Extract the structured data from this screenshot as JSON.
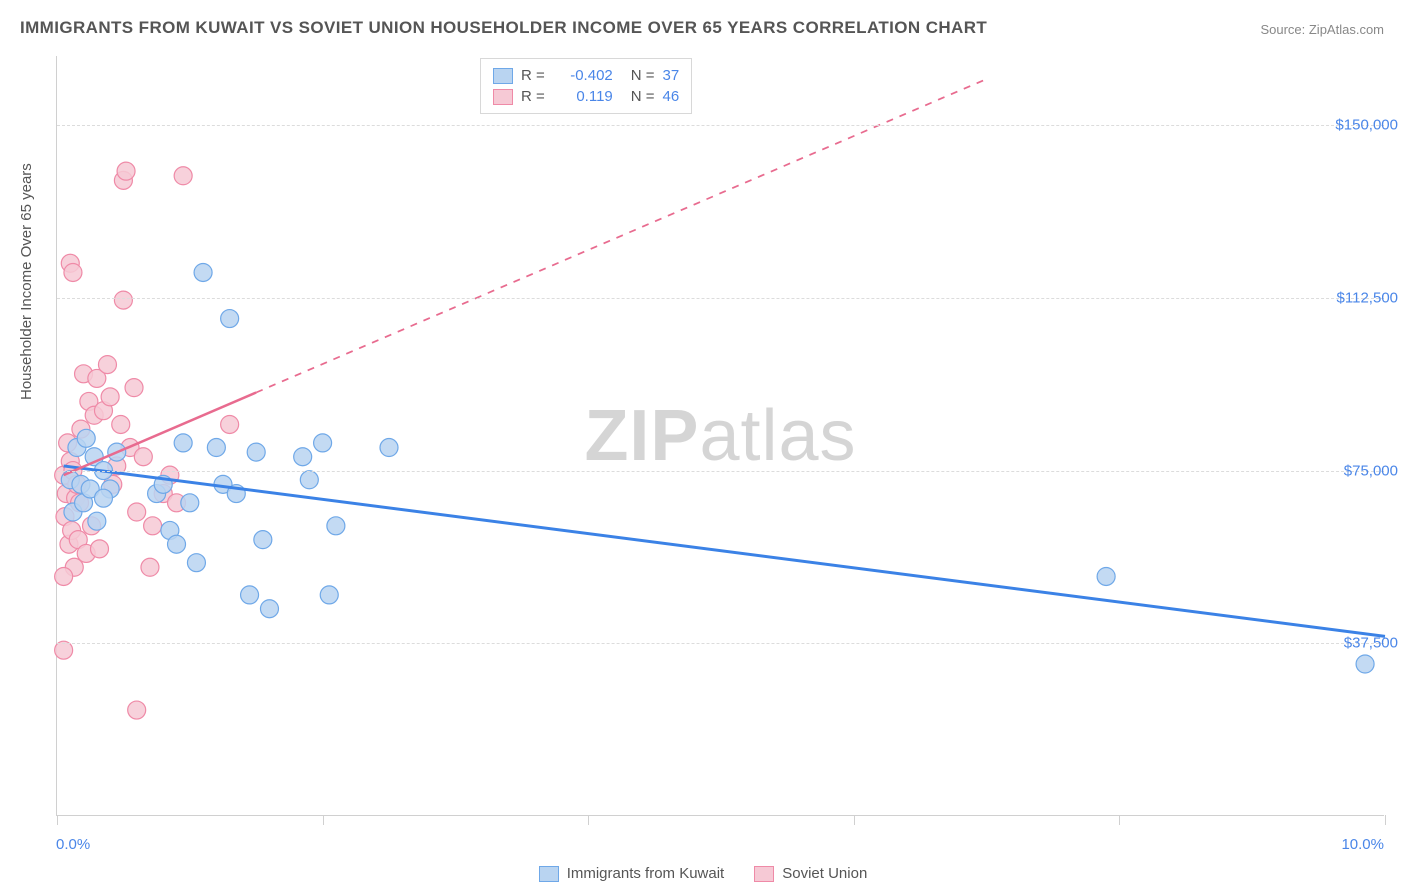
{
  "title": "IMMIGRANTS FROM KUWAIT VS SOVIET UNION HOUSEHOLDER INCOME OVER 65 YEARS CORRELATION CHART",
  "source": "Source: ZipAtlas.com",
  "ylabel": "Householder Income Over 65 years",
  "watermark_bold": "ZIP",
  "watermark_light": "atlas",
  "chart": {
    "type": "scatter",
    "xlim": [
      0,
      10
    ],
    "ylim": [
      0,
      165000
    ],
    "x_tick_label_left": "0.0%",
    "x_tick_label_right": "10.0%",
    "x_tick_positions": [
      0,
      2,
      4,
      6,
      8,
      10
    ],
    "y_ticks": [
      {
        "value": 37500,
        "label": "$37,500"
      },
      {
        "value": 75000,
        "label": "$75,000"
      },
      {
        "value": 112500,
        "label": "$112,500"
      },
      {
        "value": 150000,
        "label": "$150,000"
      }
    ],
    "grid_color": "#dcdcdc",
    "axis_color": "#d0d0d0",
    "background_color": "#ffffff",
    "series": [
      {
        "name": "Immigrants from Kuwait",
        "color_fill": "#b9d4f1",
        "color_stroke": "#6fa8e8",
        "marker_radius": 9,
        "R": "-0.402",
        "N": "37",
        "trend": {
          "x1": 0.05,
          "y1": 76000,
          "x2": 10.0,
          "y2": 39000,
          "solid_end_x": 10.0,
          "color": "#3b82e6",
          "width": 3
        },
        "points": [
          [
            0.1,
            73000
          ],
          [
            0.12,
            66000
          ],
          [
            0.15,
            80000
          ],
          [
            0.18,
            72000
          ],
          [
            0.2,
            68000
          ],
          [
            0.22,
            82000
          ],
          [
            0.25,
            71000
          ],
          [
            0.28,
            78000
          ],
          [
            0.3,
            64000
          ],
          [
            0.35,
            75000
          ],
          [
            0.4,
            71000
          ],
          [
            0.45,
            79000
          ],
          [
            0.75,
            70000
          ],
          [
            0.8,
            72000
          ],
          [
            0.85,
            62000
          ],
          [
            0.9,
            59000
          ],
          [
            0.95,
            81000
          ],
          [
            1.0,
            68000
          ],
          [
            1.05,
            55000
          ],
          [
            1.1,
            118000
          ],
          [
            1.2,
            80000
          ],
          [
            1.25,
            72000
          ],
          [
            1.3,
            108000
          ],
          [
            1.35,
            70000
          ],
          [
            1.45,
            48000
          ],
          [
            1.5,
            79000
          ],
          [
            1.55,
            60000
          ],
          [
            1.6,
            45000
          ],
          [
            1.85,
            78000
          ],
          [
            1.9,
            73000
          ],
          [
            2.0,
            81000
          ],
          [
            2.05,
            48000
          ],
          [
            2.1,
            63000
          ],
          [
            2.5,
            80000
          ],
          [
            7.9,
            52000
          ],
          [
            9.85,
            33000
          ],
          [
            0.35,
            69000
          ]
        ]
      },
      {
        "name": "Soviet Union",
        "color_fill": "#f6c9d5",
        "color_stroke": "#ef8aa7",
        "marker_radius": 9,
        "R": "0.119",
        "N": "46",
        "trend": {
          "x1": 0.05,
          "y1": 74000,
          "x2": 7.0,
          "y2": 160000,
          "solid_end_x": 1.5,
          "color": "#e86b8f",
          "width": 2.5
        },
        "points": [
          [
            0.05,
            74000
          ],
          [
            0.06,
            65000
          ],
          [
            0.07,
            70000
          ],
          [
            0.08,
            81000
          ],
          [
            0.09,
            59000
          ],
          [
            0.1,
            77000
          ],
          [
            0.11,
            62000
          ],
          [
            0.12,
            75000
          ],
          [
            0.13,
            54000
          ],
          [
            0.14,
            69000
          ],
          [
            0.15,
            72000
          ],
          [
            0.16,
            60000
          ],
          [
            0.17,
            68000
          ],
          [
            0.18,
            84000
          ],
          [
            0.2,
            96000
          ],
          [
            0.22,
            57000
          ],
          [
            0.24,
            90000
          ],
          [
            0.26,
            63000
          ],
          [
            0.28,
            87000
          ],
          [
            0.3,
            95000
          ],
          [
            0.32,
            58000
          ],
          [
            0.35,
            88000
          ],
          [
            0.38,
            98000
          ],
          [
            0.4,
            91000
          ],
          [
            0.42,
            72000
          ],
          [
            0.45,
            76000
          ],
          [
            0.48,
            85000
          ],
          [
            0.5,
            112000
          ],
          [
            0.55,
            80000
          ],
          [
            0.58,
            93000
          ],
          [
            0.6,
            66000
          ],
          [
            0.65,
            78000
          ],
          [
            0.05,
            52000
          ],
          [
            0.1,
            120000
          ],
          [
            0.12,
            118000
          ],
          [
            0.7,
            54000
          ],
          [
            0.72,
            63000
          ],
          [
            0.8,
            70000
          ],
          [
            0.85,
            74000
          ],
          [
            0.9,
            68000
          ],
          [
            1.3,
            85000
          ],
          [
            0.05,
            36000
          ],
          [
            0.5,
            138000
          ],
          [
            0.52,
            140000
          ],
          [
            0.95,
            139000
          ],
          [
            0.6,
            23000
          ]
        ]
      }
    ]
  }
}
